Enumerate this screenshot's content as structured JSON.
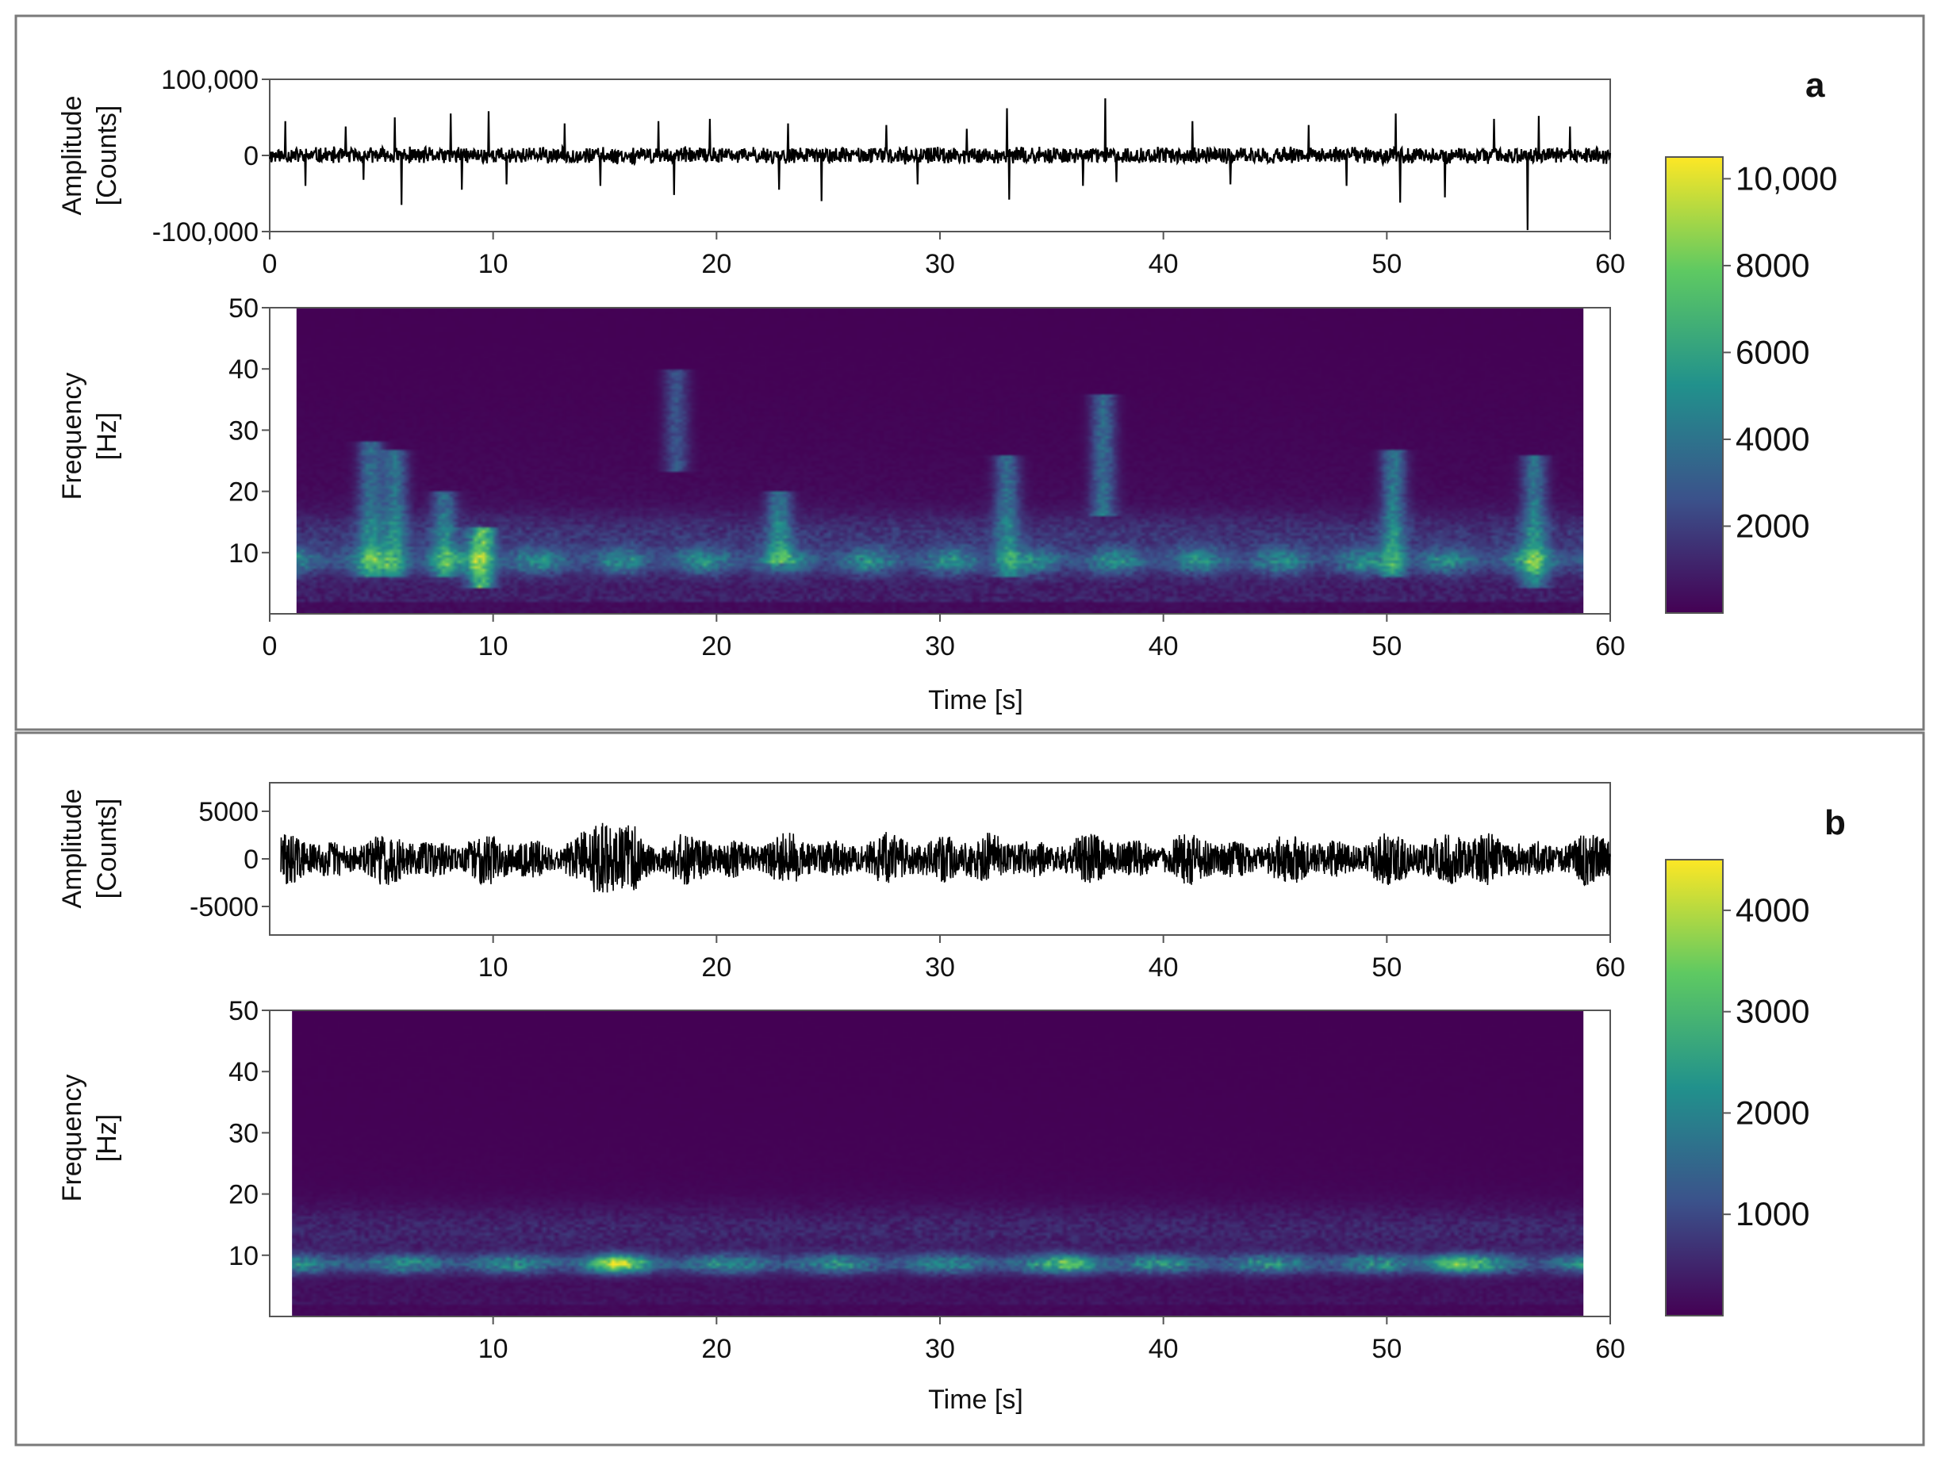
{
  "chart_data": [
    {
      "panel_label": "a",
      "type": "line",
      "ylabel_line1": "Amplitude",
      "ylabel_line2": "[Counts]",
      "xlim": [
        0,
        60
      ],
      "ylim": [
        -100000,
        100000
      ],
      "x_ticks": [
        "0",
        "10",
        "20",
        "30",
        "40",
        "50",
        "60"
      ],
      "y_ticks": [
        {
          "value": 100000,
          "label": "100,000"
        },
        {
          "value": 0,
          "label": "0"
        },
        {
          "value": -100000,
          "label": "-100,000"
        }
      ],
      "series_color": "#000000",
      "noise_amplitude": 12000,
      "spikes": [
        {
          "t": 0.7,
          "v": 45000
        },
        {
          "t": 1.6,
          "v": -40000
        },
        {
          "t": 3.4,
          "v": 38000
        },
        {
          "t": 4.2,
          "v": -32000
        },
        {
          "t": 5.6,
          "v": 50000
        },
        {
          "t": 5.9,
          "v": -65000
        },
        {
          "t": 8.1,
          "v": 55000
        },
        {
          "t": 8.6,
          "v": -45000
        },
        {
          "t": 9.8,
          "v": 58000
        },
        {
          "t": 10.6,
          "v": -38000
        },
        {
          "t": 13.2,
          "v": 42000
        },
        {
          "t": 14.8,
          "v": -40000
        },
        {
          "t": 17.4,
          "v": 45000
        },
        {
          "t": 18.1,
          "v": -52000
        },
        {
          "t": 19.7,
          "v": 48000
        },
        {
          "t": 22.8,
          "v": -45000
        },
        {
          "t": 23.2,
          "v": 42000
        },
        {
          "t": 24.7,
          "v": -60000
        },
        {
          "t": 27.6,
          "v": 40000
        },
        {
          "t": 29.0,
          "v": -38000
        },
        {
          "t": 31.2,
          "v": 35000
        },
        {
          "t": 33.0,
          "v": 62000
        },
        {
          "t": 33.1,
          "v": -58000
        },
        {
          "t": 36.4,
          "v": -40000
        },
        {
          "t": 37.4,
          "v": 75000
        },
        {
          "t": 37.9,
          "v": -35000
        },
        {
          "t": 41.3,
          "v": 45000
        },
        {
          "t": 43.0,
          "v": -38000
        },
        {
          "t": 46.5,
          "v": 40000
        },
        {
          "t": 48.2,
          "v": -40000
        },
        {
          "t": 50.4,
          "v": 55000
        },
        {
          "t": 50.6,
          "v": -62000
        },
        {
          "t": 52.6,
          "v": -55000
        },
        {
          "t": 54.8,
          "v": 48000
        },
        {
          "t": 56.3,
          "v": -98000
        },
        {
          "t": 56.8,
          "v": 52000
        },
        {
          "t": 58.2,
          "v": 38000
        }
      ]
    },
    {
      "panel_label": "",
      "type": "heatmap",
      "xlabel": "Time [s]",
      "ylabel_line1": "Frequency",
      "ylabel_line2": "[Hz]",
      "xlim": [
        0,
        60
      ],
      "ylim": [
        0,
        50
      ],
      "data_xrange": [
        1.2,
        58.8
      ],
      "x_ticks": [
        "0",
        "10",
        "20",
        "30",
        "40",
        "50",
        "60"
      ],
      "y_ticks": [
        {
          "value": 50,
          "label": "50"
        },
        {
          "value": 40,
          "label": "40"
        },
        {
          "value": 30,
          "label": "30"
        },
        {
          "value": 20,
          "label": "20"
        },
        {
          "value": 10,
          "label": "10"
        }
      ],
      "colormap": [
        "#440154",
        "#3b528b",
        "#21918c",
        "#5ec962",
        "#fde725"
      ],
      "colorbar": {
        "min": 0,
        "max": 10500,
        "ticks": [
          {
            "value": 10000,
            "label": "10,000"
          },
          {
            "value": 8000,
            "label": "8000"
          },
          {
            "value": 6000,
            "label": "6000"
          },
          {
            "value": 4000,
            "label": "4000"
          },
          {
            "value": 2000,
            "label": "2000"
          }
        ]
      },
      "dominant_band_hz": 8.5,
      "band_peak": 9000,
      "background_level": 1200,
      "bursts": [
        {
          "t": 4.5,
          "fmin": 8,
          "fmax": 26,
          "level": 4200
        },
        {
          "t": 5.6,
          "fmin": 8,
          "fmax": 25,
          "level": 4500
        },
        {
          "t": 7.8,
          "fmin": 8,
          "fmax": 18,
          "level": 4000
        },
        {
          "t": 9.5,
          "fmin": 6,
          "fmax": 12,
          "level": 7500
        },
        {
          "t": 18.2,
          "fmin": 25,
          "fmax": 38,
          "level": 3200
        },
        {
          "t": 22.8,
          "fmin": 10,
          "fmax": 18,
          "level": 4500
        },
        {
          "t": 33.0,
          "fmin": 8,
          "fmax": 24,
          "level": 4200
        },
        {
          "t": 37.3,
          "fmin": 18,
          "fmax": 34,
          "level": 4300
        },
        {
          "t": 50.3,
          "fmin": 8,
          "fmax": 25,
          "level": 4700
        },
        {
          "t": 56.6,
          "fmin": 6,
          "fmax": 24,
          "level": 4500
        }
      ]
    },
    {
      "panel_label": "b",
      "type": "line",
      "ylabel_line1": "Amplitude",
      "ylabel_line2": "[Counts]",
      "xlim": [
        0,
        60
      ],
      "ylim": [
        -8000,
        8000
      ],
      "data_xrange": [
        0.5,
        60
      ],
      "x_ticks": [
        "10",
        "20",
        "30",
        "40",
        "50",
        "60"
      ],
      "y_ticks": [
        {
          "value": 5000,
          "label": "5000"
        },
        {
          "value": 0,
          "label": "0"
        },
        {
          "value": -5000,
          "label": "-5000"
        }
      ],
      "series_color": "#000000",
      "noise_amplitude": 2600,
      "envelope_peaks": [
        {
          "t": 15.0,
          "scale": 1.7
        },
        {
          "t": 16.0,
          "scale": 1.8
        },
        {
          "t": 30.5,
          "scale": 1.4
        },
        {
          "t": 53.0,
          "scale": 1.5
        }
      ]
    },
    {
      "panel_label": "",
      "type": "heatmap",
      "xlabel": "Time [s]",
      "ylabel_line1": "Frequency",
      "ylabel_line2": "[Hz]",
      "xlim": [
        0,
        60
      ],
      "ylim": [
        0,
        50
      ],
      "data_xrange": [
        1.0,
        58.8
      ],
      "x_ticks": [
        "10",
        "20",
        "30",
        "40",
        "50",
        "60"
      ],
      "y_ticks": [
        {
          "value": 50,
          "label": "50"
        },
        {
          "value": 40,
          "label": "40"
        },
        {
          "value": 30,
          "label": "30"
        },
        {
          "value": 20,
          "label": "20"
        },
        {
          "value": 10,
          "label": "10"
        }
      ],
      "colormap": [
        "#440154",
        "#3b528b",
        "#21918c",
        "#5ec962",
        "#fde725"
      ],
      "colorbar": {
        "min": 0,
        "max": 4500,
        "ticks": [
          {
            "value": 4000,
            "label": "4000"
          },
          {
            "value": 3000,
            "label": "3000"
          },
          {
            "value": 2000,
            "label": "2000"
          },
          {
            "value": 1000,
            "label": "1000"
          }
        ]
      },
      "dominant_band_hz": 8.5,
      "band_peak": 3600,
      "background_level": 250,
      "hotspots": [
        {
          "t": 15.5,
          "level": 4200
        },
        {
          "t": 53.0,
          "level": 3800
        },
        {
          "t": 36.0,
          "level": 2800
        }
      ]
    }
  ]
}
